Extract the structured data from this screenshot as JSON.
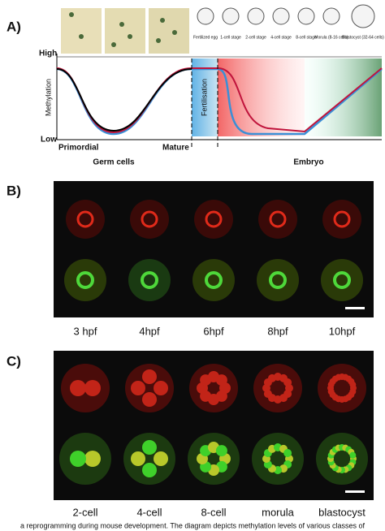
{
  "panel_a": {
    "label": "A)",
    "axis_high": "High",
    "axis_low": "Low",
    "axis_title": "Methylation",
    "fertilisation": "Fertilisation",
    "x_labels": [
      "Primordial",
      "Mature"
    ],
    "groups": [
      "Germ cells",
      "Embryo"
    ],
    "stages": [
      "Fertilized egg",
      "1-cell stage",
      "2-cell stage",
      "4-cell stage",
      "8-cell stage",
      "Morula (8-16 cells)",
      "Blastocyst (32-64 cells)"
    ]
  },
  "panel_b": {
    "label": "B)",
    "timepoints": [
      "3 hpf",
      "4hpf",
      "6hpf",
      "8hpf",
      "10hpf"
    ]
  },
  "panel_c": {
    "label": "C)",
    "stages": [
      "2-cell",
      "4-cell",
      "8-cell",
      "morula",
      "blastocyst"
    ]
  },
  "caption": "a reprogramming during mouse development. The diagram depicts methylation levels of various classes of"
}
